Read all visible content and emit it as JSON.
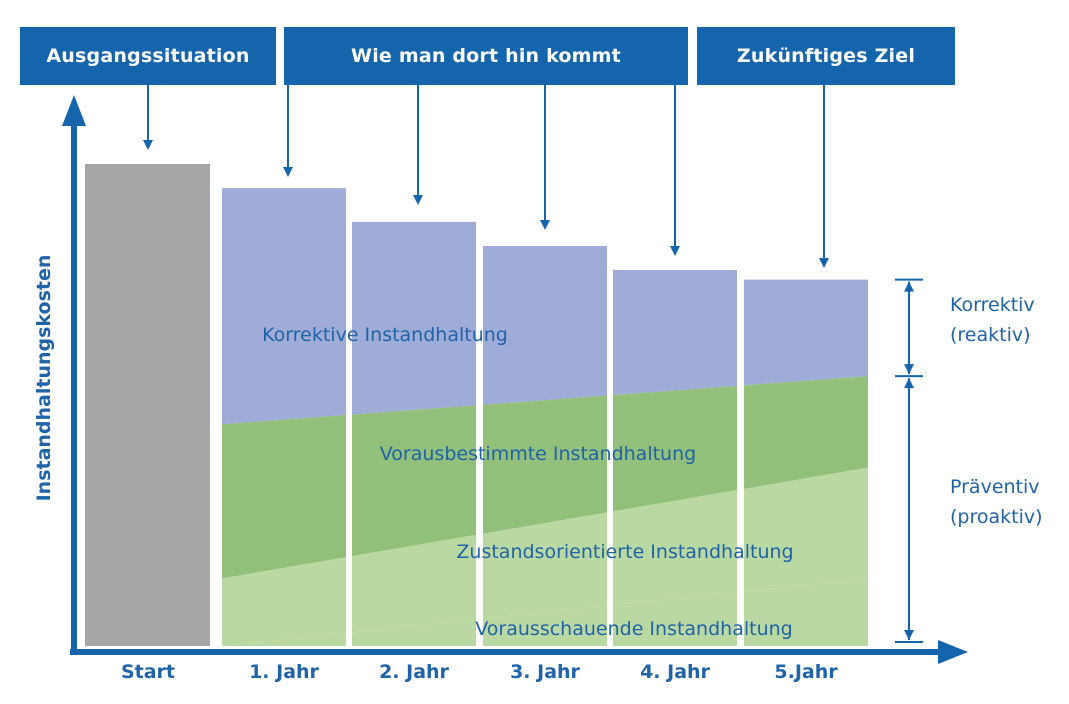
{
  "header": {
    "phases": [
      {
        "label": "Ausgangssituation"
      },
      {
        "label": "Wie man dort hin kommt"
      },
      {
        "label": "Zukünftiges Ziel"
      }
    ]
  },
  "chart_data": {
    "type": "bar",
    "ylabel": "Instandhaltungskosten",
    "xlabel": "",
    "categories": [
      "Start",
      "1. Jahr",
      "2. Jahr",
      "3. Jahr",
      "4. Jahr",
      "5.Jahr"
    ],
    "ylim": [
      0,
      100
    ],
    "start_total": 100,
    "totals": [
      100,
      95,
      88,
      83,
      78,
      76
    ],
    "boundary_points": {
      "x_fraction": [
        0,
        1
      ],
      "green_top": [
        46,
        56
      ],
      "lightgreen_top": [
        14,
        37
      ],
      "lightgreen_bottom": [
        0,
        14
      ]
    },
    "series": [
      {
        "name": "Korrektive Instandhaltung",
        "color": "#a0acd8"
      },
      {
        "name": "Vorausbestimmte Instandhaltung",
        "color": "#92c07b"
      },
      {
        "name": "Zustandsorientierte Instandhaltung",
        "color": "#bad8a2"
      },
      {
        "name": "Vorausschauende Instandhaltung",
        "color": "#bad8a2"
      }
    ],
    "start_color": "#a7a6a5",
    "side_labels": [
      {
        "line1": "Korrektiv",
        "line2": "(reaktiv)"
      },
      {
        "line1": "Präventiv",
        "line2": "(proaktiv)"
      }
    ],
    "axis_color": "#1565ad"
  }
}
